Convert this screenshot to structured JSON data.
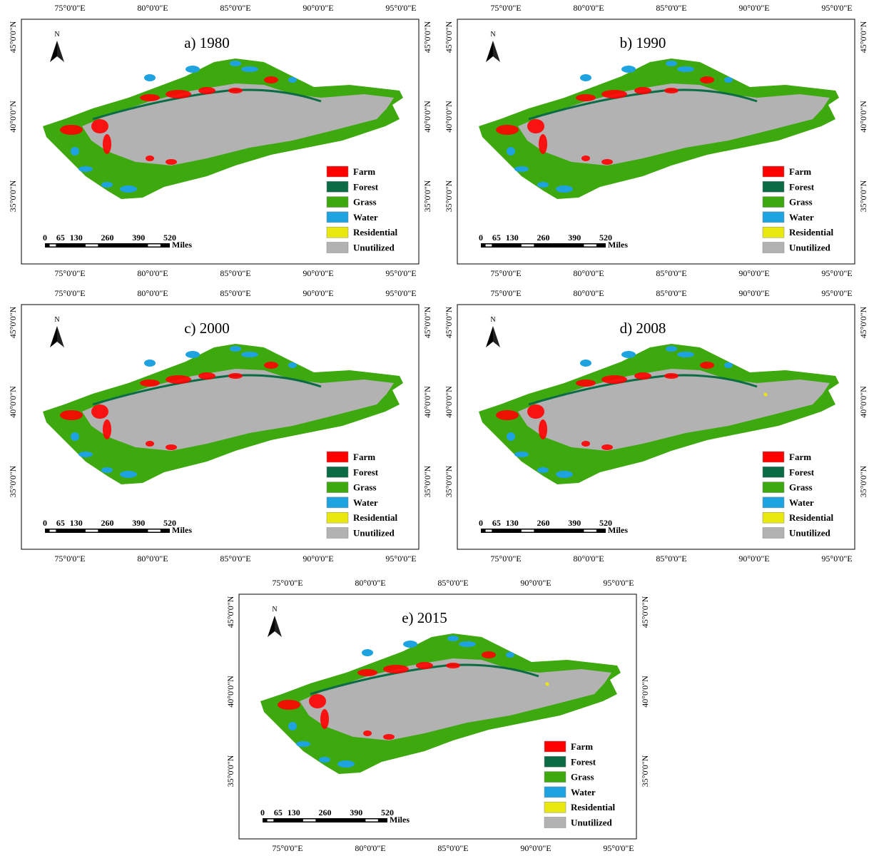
{
  "panels": [
    {
      "title": "a) 1980"
    },
    {
      "title": "b) 1990"
    },
    {
      "title": "c) 2000"
    },
    {
      "title": "d) 2008"
    },
    {
      "title": "e) 2015"
    }
  ],
  "lon_labels": [
    "75°0'0\"E",
    "80°0'0\"E",
    "85°0'0\"E",
    "90°0'0\"E",
    "95°0'0\"E"
  ],
  "lat_labels": [
    "45°0'0\"N",
    "40°0'0\"N",
    "35°0'0\"N"
  ],
  "north": "N",
  "legend": [
    {
      "label": "Farm",
      "color": "#ff0000"
    },
    {
      "label": "Forest",
      "color": "#0b6b45"
    },
    {
      "label": "Grass",
      "color": "#3ea80f"
    },
    {
      "label": "Water",
      "color": "#1ea3e0"
    },
    {
      "label": "Residential",
      "color": "#e8e80e"
    },
    {
      "label": "Unutilized",
      "color": "#b2b2b2"
    }
  ],
  "scale_bar": {
    "labels": [
      0,
      65,
      130,
      260,
      390,
      520
    ],
    "unit": "Miles"
  }
}
